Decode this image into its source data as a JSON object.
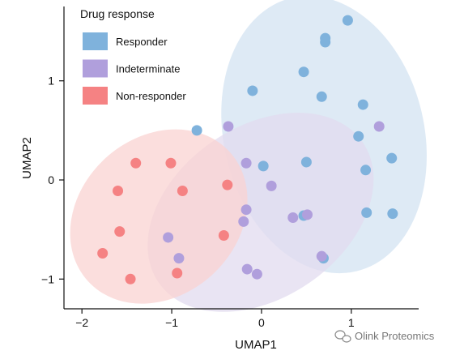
{
  "chart_data": {
    "type": "scatter",
    "xlabel": "UMAP1",
    "ylabel": "UMAP2",
    "xlim": [
      -2.2,
      1.75
    ],
    "ylim": [
      -1.3,
      1.75
    ],
    "xticks": [
      "−2",
      "−1",
      "0",
      "1"
    ],
    "xtick_values": [
      -2,
      -1,
      0,
      1
    ],
    "yticks": [
      "−1",
      "0",
      "1"
    ],
    "ytick_values": [
      -1,
      0,
      1
    ],
    "grid": false,
    "legend": {
      "title": "Drug response",
      "placement": "top-left",
      "entries": [
        "Responder",
        "Indeterminate",
        "Non-responder"
      ]
    },
    "series": [
      {
        "name": "Responder",
        "color": "#7fb2dc",
        "ellipse_color": "#d3e3f1",
        "points": [
          [
            0.96,
            1.61
          ],
          [
            0.71,
            1.43
          ],
          [
            0.71,
            1.39
          ],
          [
            0.47,
            1.09
          ],
          [
            -0.1,
            0.9
          ],
          [
            0.67,
            0.84
          ],
          [
            1.13,
            0.76
          ],
          [
            -0.72,
            0.5
          ],
          [
            1.08,
            0.44
          ],
          [
            1.45,
            0.22
          ],
          [
            0.5,
            0.18
          ],
          [
            0.02,
            0.14
          ],
          [
            1.16,
            0.1
          ],
          [
            1.17,
            -0.33
          ],
          [
            1.46,
            -0.34
          ],
          [
            0.47,
            -0.36
          ],
          [
            0.69,
            -0.79
          ]
        ]
      },
      {
        "name": "Indeterminate",
        "color": "#b09fdc",
        "ellipse_color": "#e1dbef",
        "points": [
          [
            -0.37,
            0.54
          ],
          [
            1.31,
            0.54
          ],
          [
            -0.17,
            0.17
          ],
          [
            0.11,
            -0.06
          ],
          [
            -0.17,
            -0.3
          ],
          [
            -0.2,
            -0.42
          ],
          [
            0.35,
            -0.38
          ],
          [
            0.51,
            -0.35
          ],
          [
            -1.04,
            -0.58
          ],
          [
            -0.92,
            -0.79
          ],
          [
            0.67,
            -0.77
          ],
          [
            -0.16,
            -0.9
          ],
          [
            -0.05,
            -0.95
          ]
        ]
      },
      {
        "name": "Non-responder",
        "color": "#f58283",
        "ellipse_color": "#fad3d2",
        "points": [
          [
            -1.4,
            0.17
          ],
          [
            -1.01,
            0.17
          ],
          [
            -1.6,
            -0.11
          ],
          [
            -0.88,
            -0.11
          ],
          [
            -0.38,
            -0.05
          ],
          [
            -1.58,
            -0.52
          ],
          [
            -0.42,
            -0.56
          ],
          [
            -1.77,
            -0.74
          ],
          [
            -0.94,
            -0.94
          ],
          [
            -1.46,
            -1.0
          ]
        ]
      }
    ]
  },
  "watermark": {
    "text": "Olink Proteomics",
    "icon": "wechat-icon"
  }
}
